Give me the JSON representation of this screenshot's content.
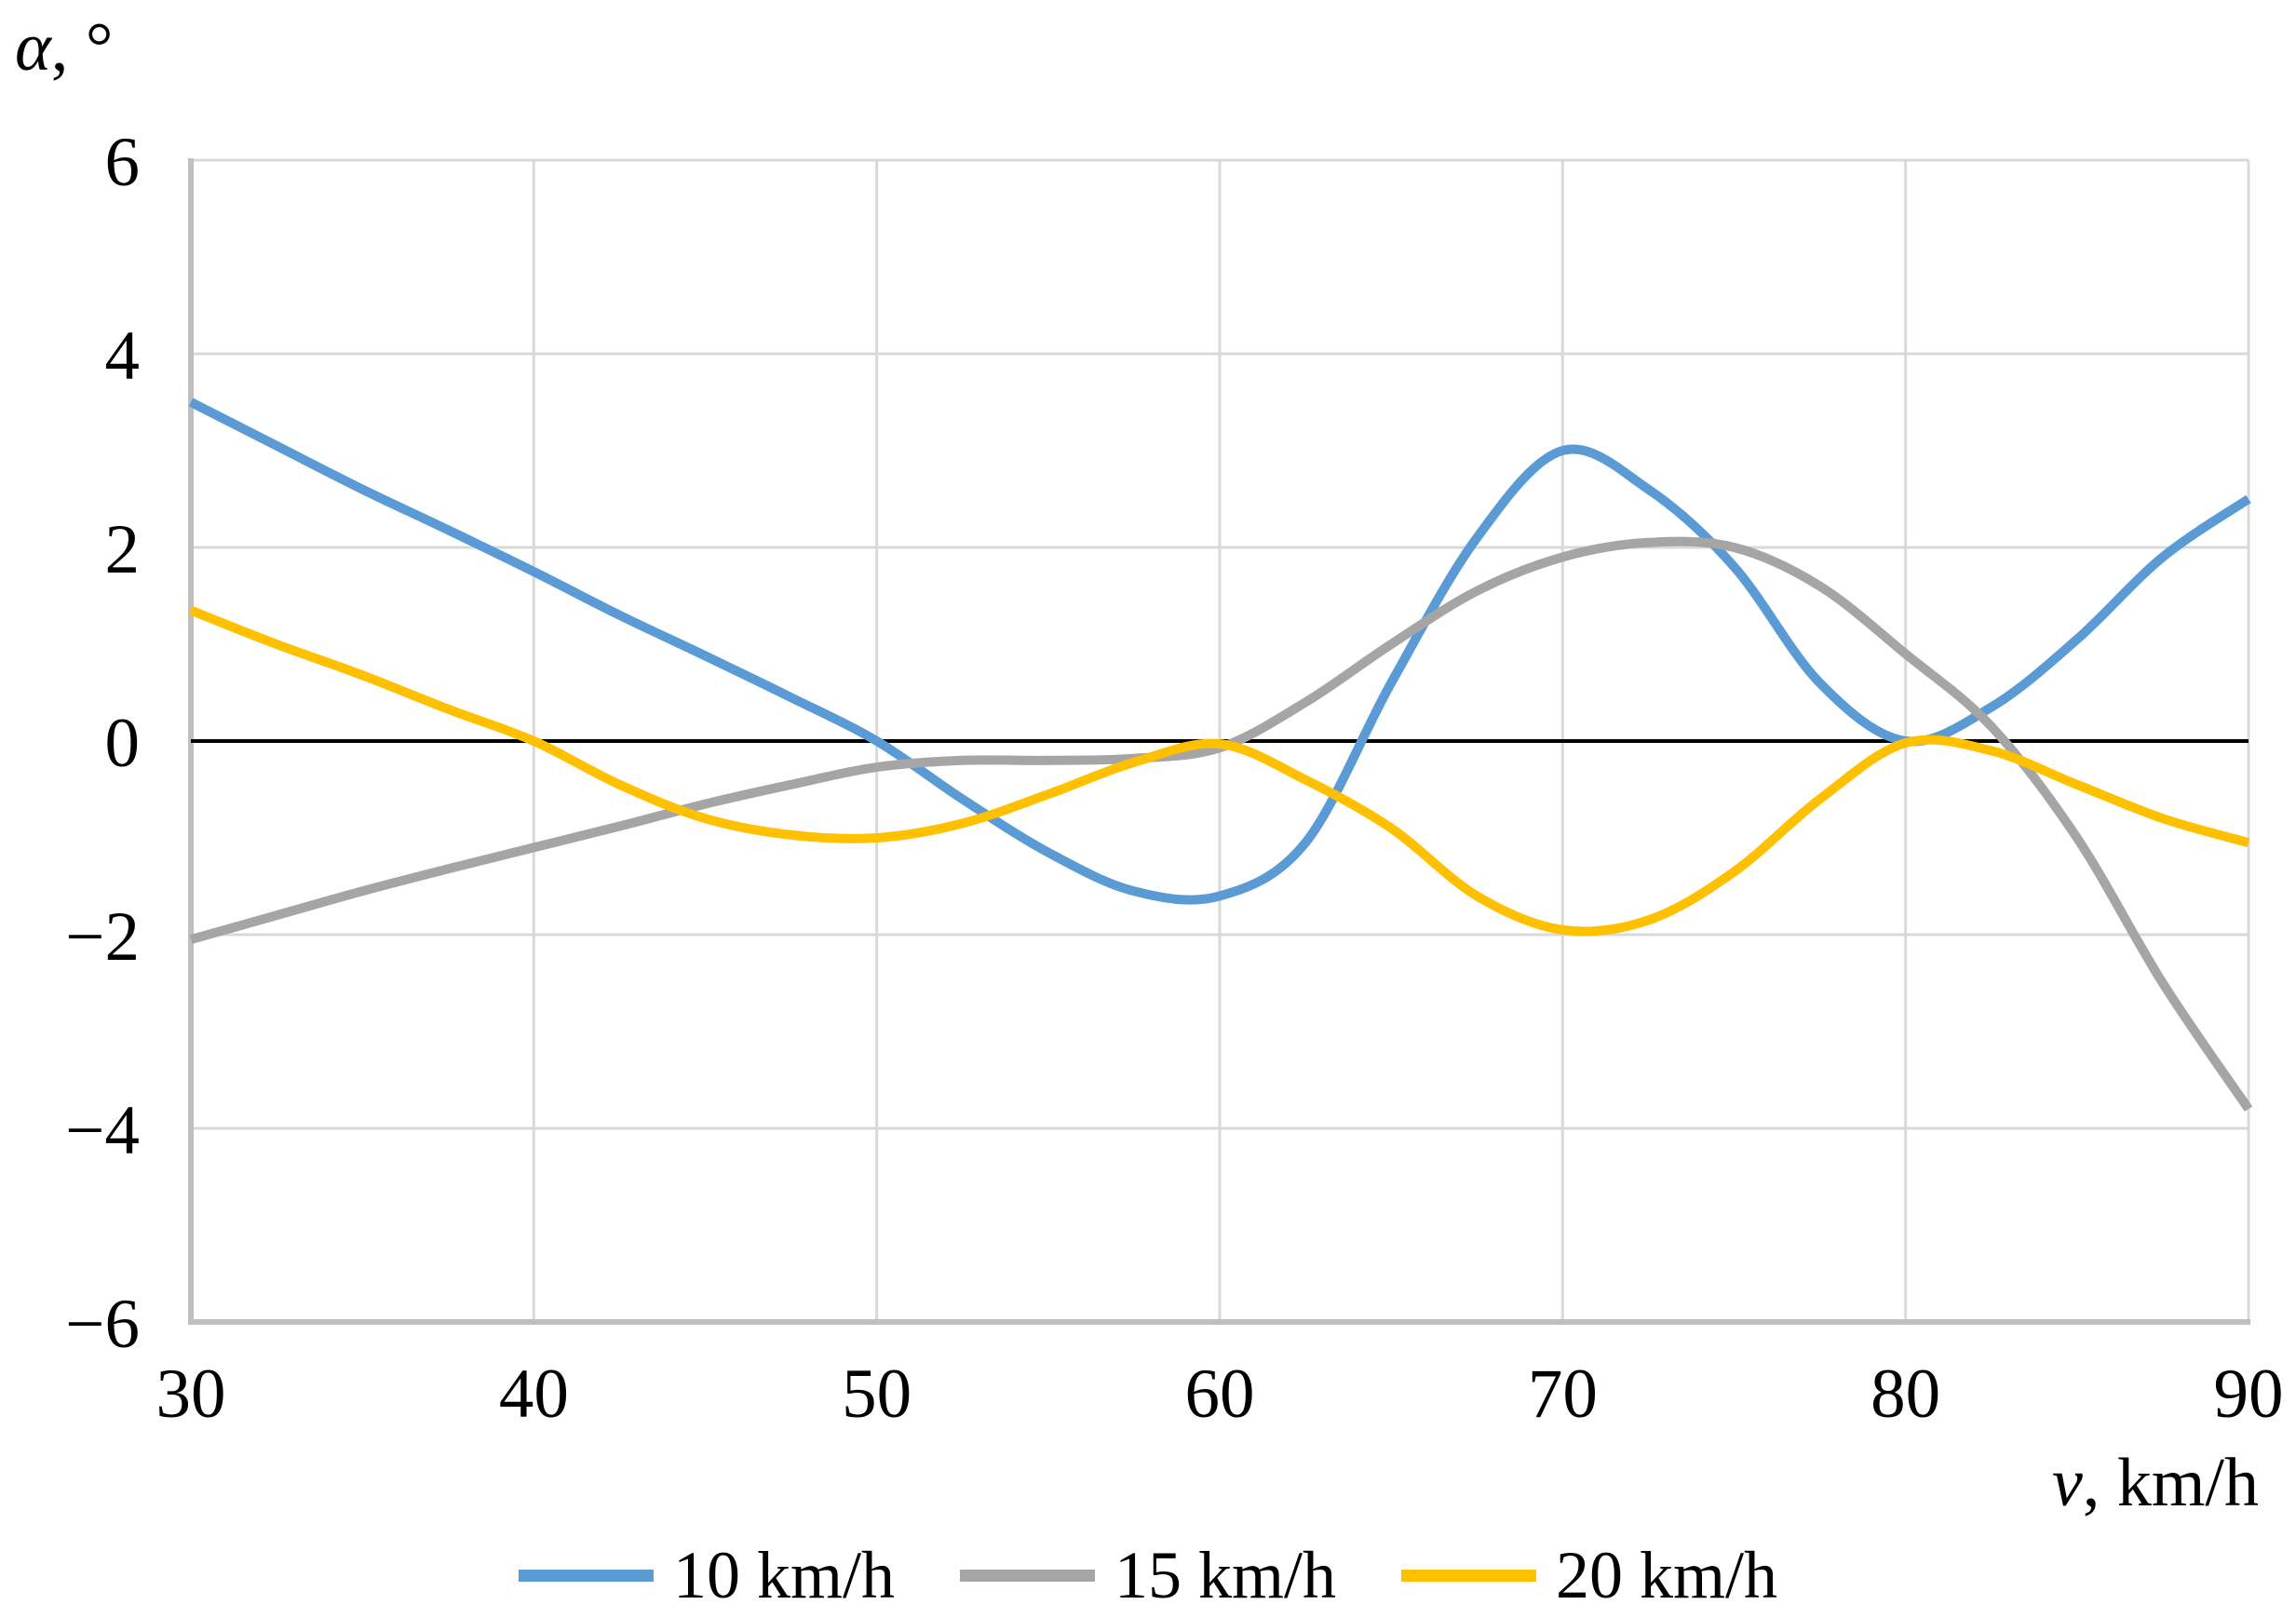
{
  "chart_data": {
    "type": "line",
    "title": "",
    "x_axis_label": {
      "symbol": "v",
      "unit": ", km/h"
    },
    "y_axis_label": {
      "symbol": "α",
      "unit": ", °"
    },
    "xlim": [
      30,
      90
    ],
    "ylim": [
      -6,
      6
    ],
    "x_ticks": [
      30,
      40,
      50,
      60,
      70,
      80,
      90
    ],
    "y_ticks": [
      6,
      4,
      2,
      0,
      -2,
      -4,
      -6
    ],
    "grid": true,
    "legend_position": "bottom",
    "x": [
      30,
      32.5,
      35,
      37.5,
      40,
      42.5,
      45,
      47.5,
      50,
      52.5,
      55,
      57.5,
      60,
      62.5,
      65,
      67.5,
      70,
      72.5,
      75,
      77.5,
      80,
      82.5,
      85,
      87.5,
      90
    ],
    "series": [
      {
        "name": "10 km/h",
        "color": "#5B9BD5",
        "values": [
          3.5,
          3.05,
          2.6,
          2.18,
          1.75,
          1.3,
          0.88,
          0.45,
          0,
          -0.6,
          -1.15,
          -1.55,
          -1.6,
          -1.05,
          0.6,
          2.1,
          3.0,
          2.6,
          1.8,
          0.6,
          0,
          0.35,
          1.05,
          1.9,
          2.5
        ]
      },
      {
        "name": "15 km/h",
        "color": "#A5A5A5",
        "values": [
          -2.05,
          -1.8,
          -1.55,
          -1.32,
          -1.1,
          -0.88,
          -0.65,
          -0.45,
          -0.27,
          -0.2,
          -0.2,
          -0.18,
          -0.07,
          0.4,
          1.0,
          1.55,
          1.9,
          2.05,
          2.0,
          1.6,
          0.9,
          0.15,
          -1.0,
          -2.5,
          -3.8
        ]
      },
      {
        "name": "20 km/h",
        "color": "#FFC000",
        "values": [
          1.35,
          1.0,
          0.68,
          0.33,
          0,
          -0.45,
          -0.8,
          -0.97,
          -1.0,
          -0.85,
          -0.55,
          -0.22,
          -0.03,
          -0.4,
          -0.9,
          -1.6,
          -1.95,
          -1.85,
          -1.35,
          -0.6,
          -0.02,
          -0.1,
          -0.45,
          -0.8,
          -1.05
        ]
      }
    ],
    "colors": {
      "grid": "#D9D9D9",
      "axis": "#BFBFBF",
      "zero_line": "#000000",
      "text": "#000000"
    }
  }
}
